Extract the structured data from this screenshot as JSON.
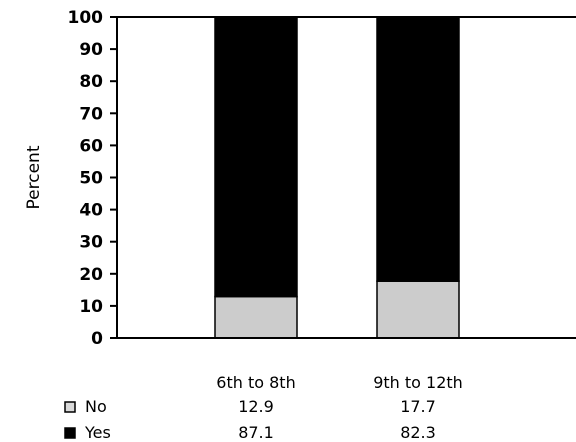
{
  "chart_data": {
    "type": "bar",
    "stacked": true,
    "title": "",
    "xlabel": "",
    "ylabel": "Percent",
    "ylim": [
      0,
      100
    ],
    "yticks": [
      0,
      10,
      20,
      30,
      40,
      50,
      60,
      70,
      80,
      90,
      100
    ],
    "grid": false,
    "categories": [
      "6th to 8th",
      "9th to 12th"
    ],
    "series": [
      {
        "name": "No",
        "values": [
          12.9,
          17.7
        ],
        "color": "#cccccc"
      },
      {
        "name": "Yes",
        "values": [
          87.1,
          82.3
        ],
        "color": "#000000"
      }
    ],
    "legend": "table-below"
  }
}
